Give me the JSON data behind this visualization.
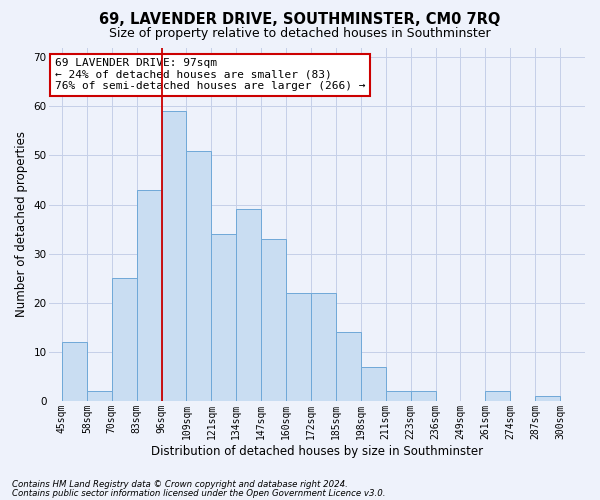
{
  "title1": "69, LAVENDER DRIVE, SOUTHMINSTER, CM0 7RQ",
  "title2": "Size of property relative to detached houses in Southminster",
  "xlabel": "Distribution of detached houses by size in Southminster",
  "ylabel": "Number of detached properties",
  "categories": [
    "45sqm",
    "58sqm",
    "70sqm",
    "83sqm",
    "96sqm",
    "109sqm",
    "121sqm",
    "134sqm",
    "147sqm",
    "160sqm",
    "172sqm",
    "185sqm",
    "198sqm",
    "211sqm",
    "223sqm",
    "236sqm",
    "249sqm",
    "261sqm",
    "274sqm",
    "287sqm",
    "300sqm"
  ],
  "values": [
    12,
    2,
    25,
    43,
    59,
    51,
    34,
    39,
    33,
    22,
    22,
    14,
    7,
    2,
    2,
    0,
    0,
    2,
    0,
    1,
    0
  ],
  "bar_color": "#c9ddf2",
  "bar_edge_color": "#6fa8d8",
  "vline_color": "#cc0000",
  "annotation_text": "69 LAVENDER DRIVE: 97sqm\n← 24% of detached houses are smaller (83)\n76% of semi-detached houses are larger (266) →",
  "annotation_box_color": "white",
  "annotation_box_edge_color": "#cc0000",
  "ylim": [
    0,
    72
  ],
  "yticks": [
    0,
    10,
    20,
    30,
    40,
    50,
    60,
    70
  ],
  "footer1": "Contains HM Land Registry data © Crown copyright and database right 2024.",
  "footer2": "Contains public sector information licensed under the Open Government Licence v3.0.",
  "bg_color": "#eef2fb",
  "grid_color": "#c5cfe8",
  "title1_fontsize": 10.5,
  "title2_fontsize": 9,
  "tick_fontsize": 7,
  "ylabel_fontsize": 8.5,
  "xlabel_fontsize": 8.5,
  "annotation_fontsize": 8,
  "footer_fontsize": 6.2
}
